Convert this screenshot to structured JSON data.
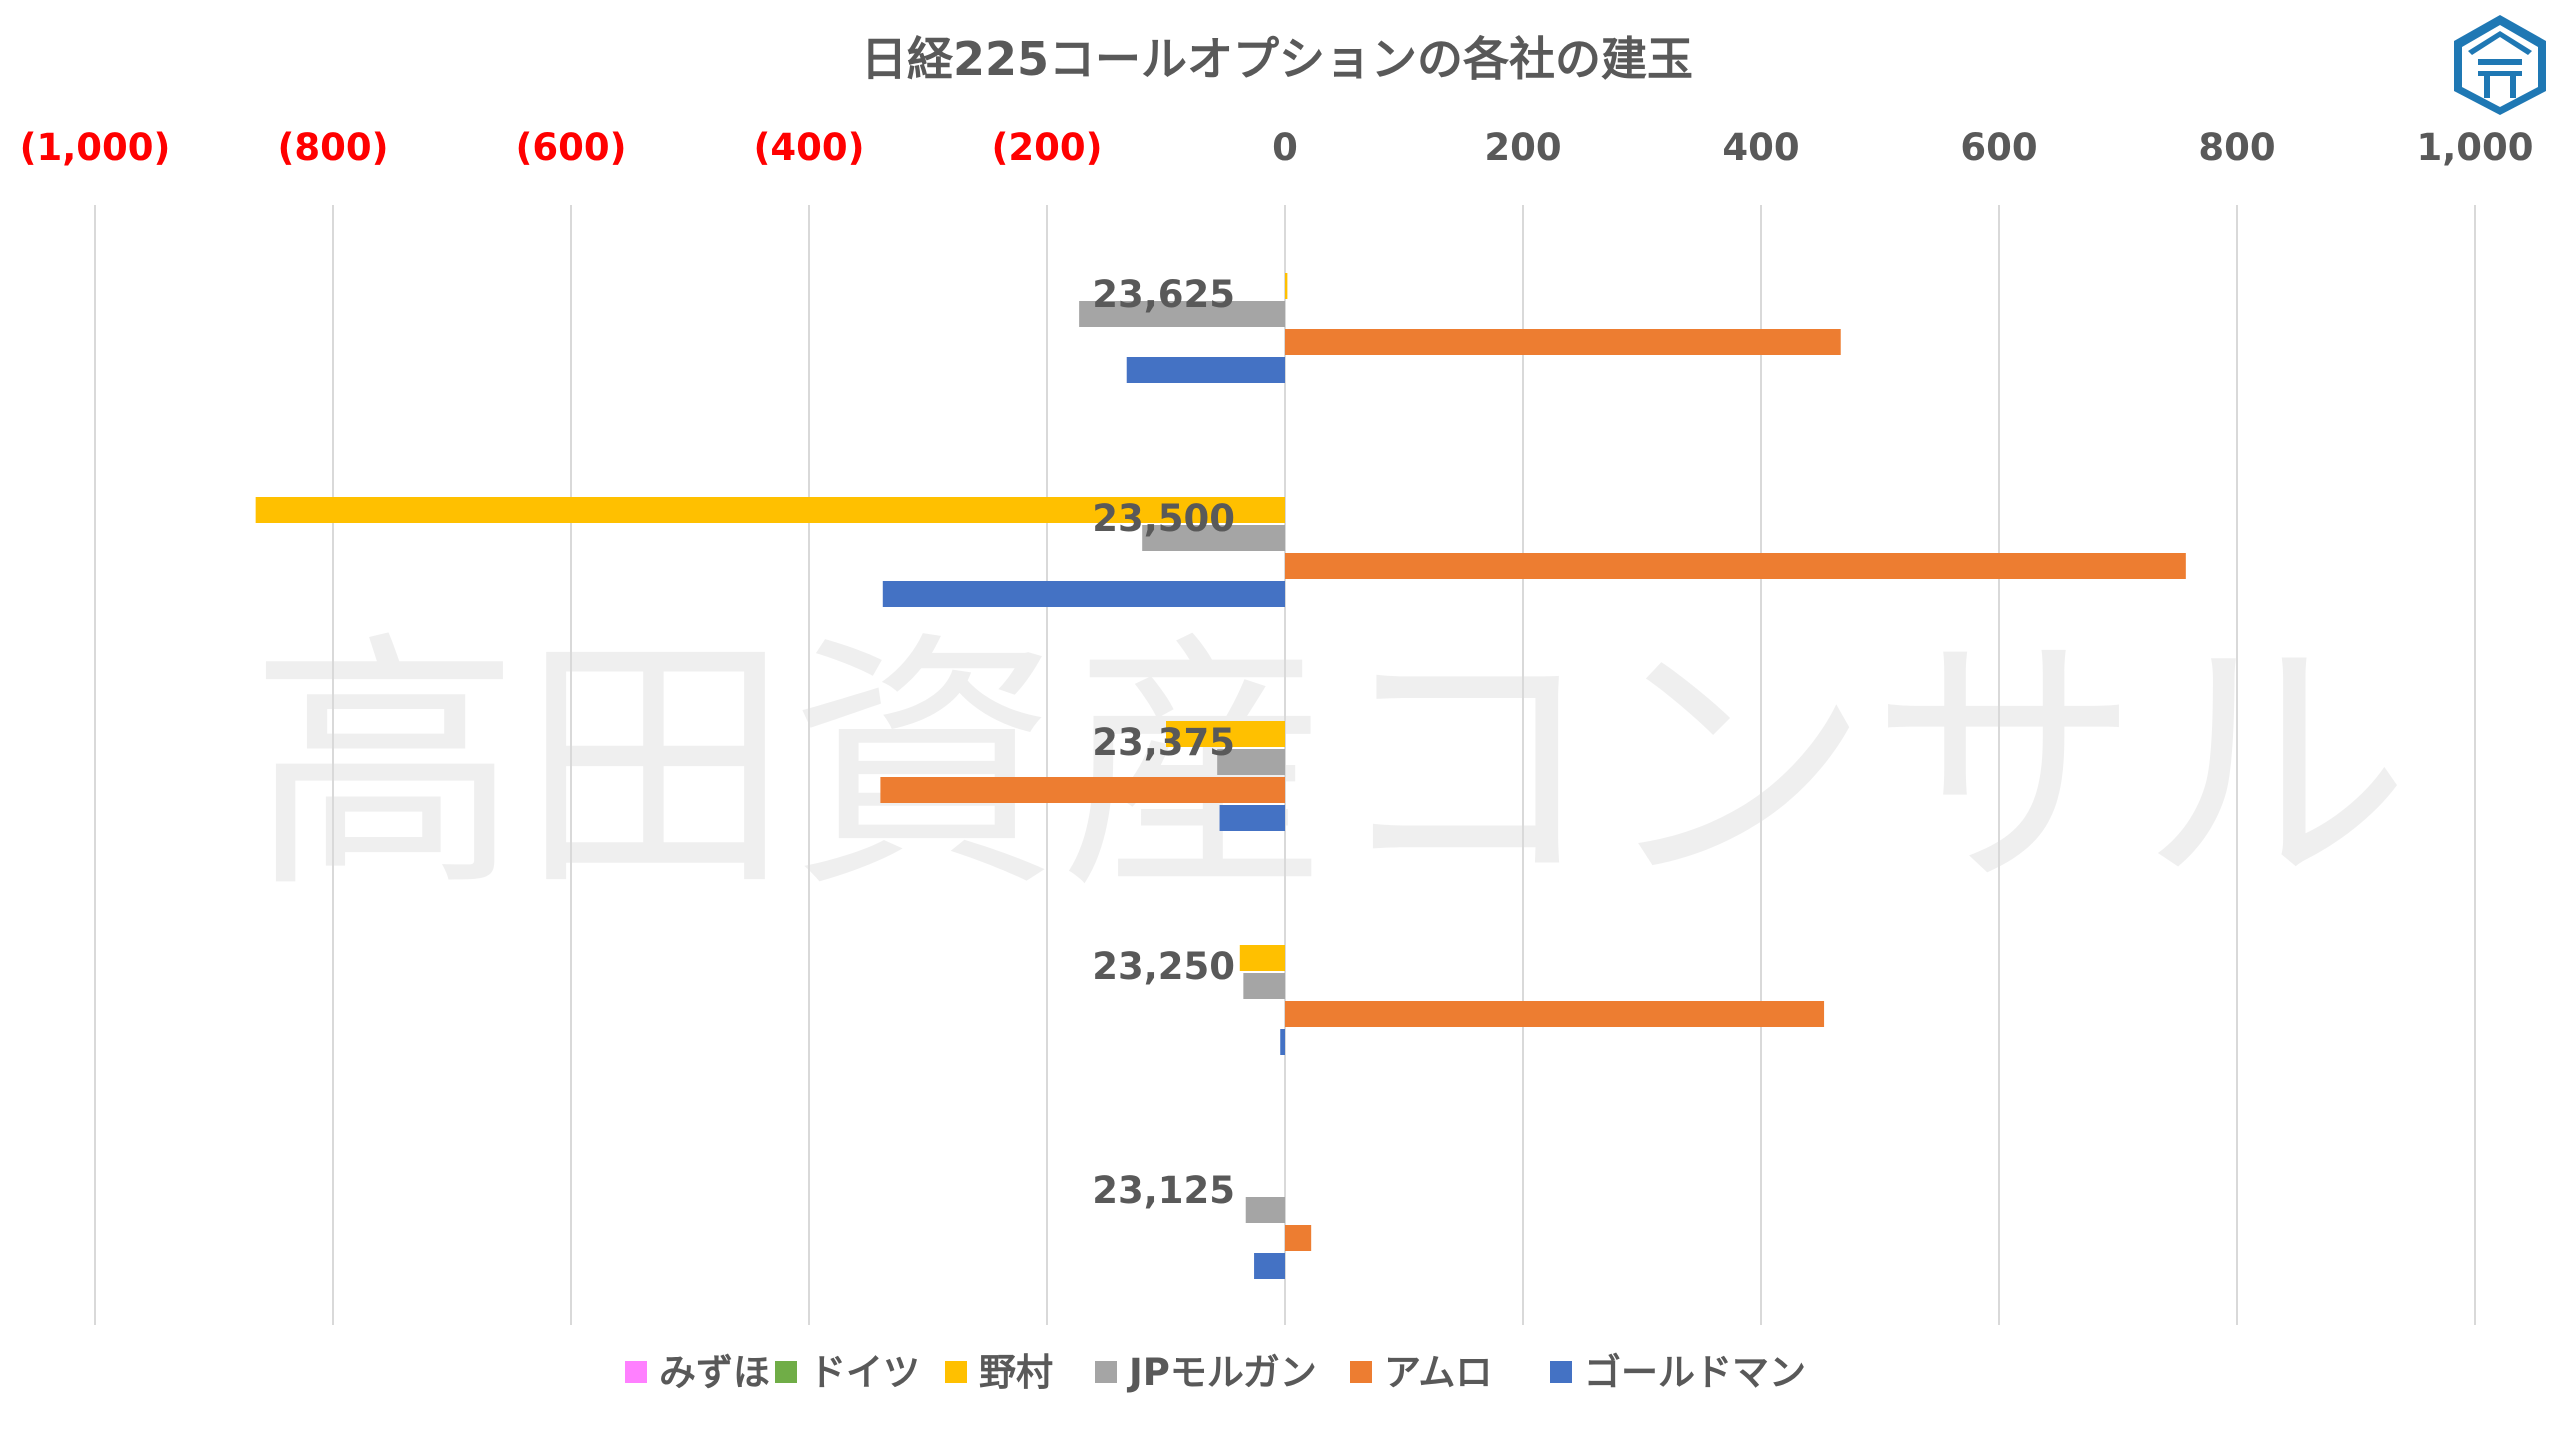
{
  "chart_data": {
    "type": "bar",
    "orientation": "horizontal",
    "title": "日経225コールオプションの各社の建玉",
    "watermark": "高田資産コンサル",
    "categories": [
      "23,625",
      "23,500",
      "23,375",
      "23,250",
      "23,125"
    ],
    "xlim": [
      -1000,
      1000
    ],
    "x_ticks": [
      -1000,
      -800,
      -600,
      -400,
      -200,
      0,
      200,
      400,
      600,
      800,
      1000
    ],
    "x_tick_labels": [
      "(1,000)",
      "(800)",
      "(600)",
      "(400)",
      "(200)",
      "0",
      "200",
      "400",
      "600",
      "800",
      "1,000"
    ],
    "grid": true,
    "legend_position": "bottom",
    "series": [
      {
        "name": "みずほ",
        "color": "#FF80FF",
        "values": [
          0,
          0,
          0,
          0,
          0
        ]
      },
      {
        "name": "ドイツ",
        "color": "#70AD47",
        "values": [
          0,
          0,
          0,
          0,
          0
        ]
      },
      {
        "name": "野村",
        "color": "#FFC000",
        "values": [
          2,
          -865,
          -100,
          -38,
          0
        ]
      },
      {
        "name": "JPモルガン",
        "color": "#A5A5A5",
        "values": [
          -173,
          -120,
          -57,
          -35,
          -33
        ]
      },
      {
        "name": "アムロ",
        "color": "#ED7D31",
        "values": [
          467,
          757,
          -340,
          453,
          22
        ]
      },
      {
        "name": "ゴールドマン",
        "color": "#4472C4",
        "values": [
          -133,
          -338,
          -55,
          -4,
          -26
        ]
      }
    ],
    "colors": {
      "negative_tick": "#FF0000",
      "positive_tick": "#595959",
      "grid": "#D9D9D9",
      "logo": "#1F78B4"
    }
  }
}
